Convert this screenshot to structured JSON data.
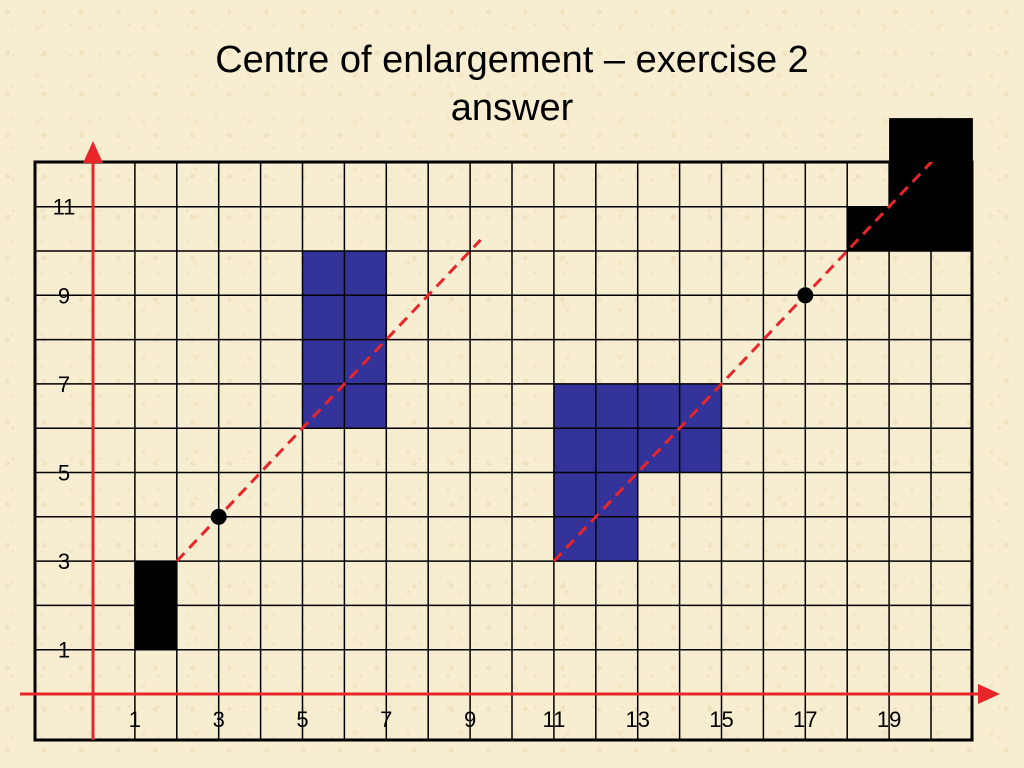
{
  "title": {
    "line1": "Centre of enlargement – exercise 2",
    "line2": "answer"
  },
  "grid": {
    "x_min": 0,
    "x_max": 21,
    "y_min": 0,
    "y_max": 13,
    "x_tick_labels": [
      "1",
      "3",
      "5",
      "7",
      "9",
      "11",
      "13",
      "15",
      "17",
      "19"
    ],
    "x_tick_values": [
      1,
      3,
      5,
      7,
      9,
      11,
      13,
      15,
      17,
      19
    ],
    "y_tick_labels": [
      "1",
      "3",
      "5",
      "7",
      "9",
      "11"
    ],
    "y_tick_values": [
      1,
      3,
      5,
      7,
      9,
      11
    ]
  },
  "colors": {
    "grid_line": "#000000",
    "axis": "#e8262a",
    "object": "#000000",
    "image": "#333399",
    "ray": "#e8262a",
    "centre": "#000000"
  },
  "shapes": [
    {
      "role": "object",
      "cells": [
        [
          1,
          1
        ],
        [
          1,
          2
        ]
      ]
    },
    {
      "role": "image",
      "cells": [
        [
          5,
          6
        ],
        [
          6,
          6
        ],
        [
          5,
          7
        ],
        [
          6,
          7
        ],
        [
          5,
          8
        ],
        [
          6,
          8
        ],
        [
          5,
          9
        ],
        [
          6,
          9
        ]
      ]
    },
    {
      "role": "object",
      "cells": [
        [
          20,
          10
        ],
        [
          19,
          10
        ],
        [
          20,
          11
        ],
        [
          19,
          11
        ],
        [
          18,
          10
        ],
        [
          19,
          12
        ],
        [
          20,
          12
        ]
      ]
    },
    {
      "role": "image",
      "cells": [
        [
          11,
          3
        ],
        [
          12,
          3
        ],
        [
          11,
          4
        ],
        [
          12,
          4
        ],
        [
          11,
          5
        ],
        [
          12,
          5
        ],
        [
          13,
          5
        ],
        [
          14,
          5
        ],
        [
          11,
          6
        ],
        [
          12,
          6
        ],
        [
          13,
          6
        ],
        [
          14,
          6
        ]
      ]
    }
  ],
  "rays": [
    {
      "from": [
        2,
        3
      ],
      "to": [
        9.25,
        10.25
      ]
    },
    {
      "from": [
        11,
        3
      ],
      "to": [
        21,
        13
      ]
    }
  ],
  "centres": [
    {
      "x": 3,
      "y": 4
    },
    {
      "x": 17,
      "y": 9
    }
  ]
}
